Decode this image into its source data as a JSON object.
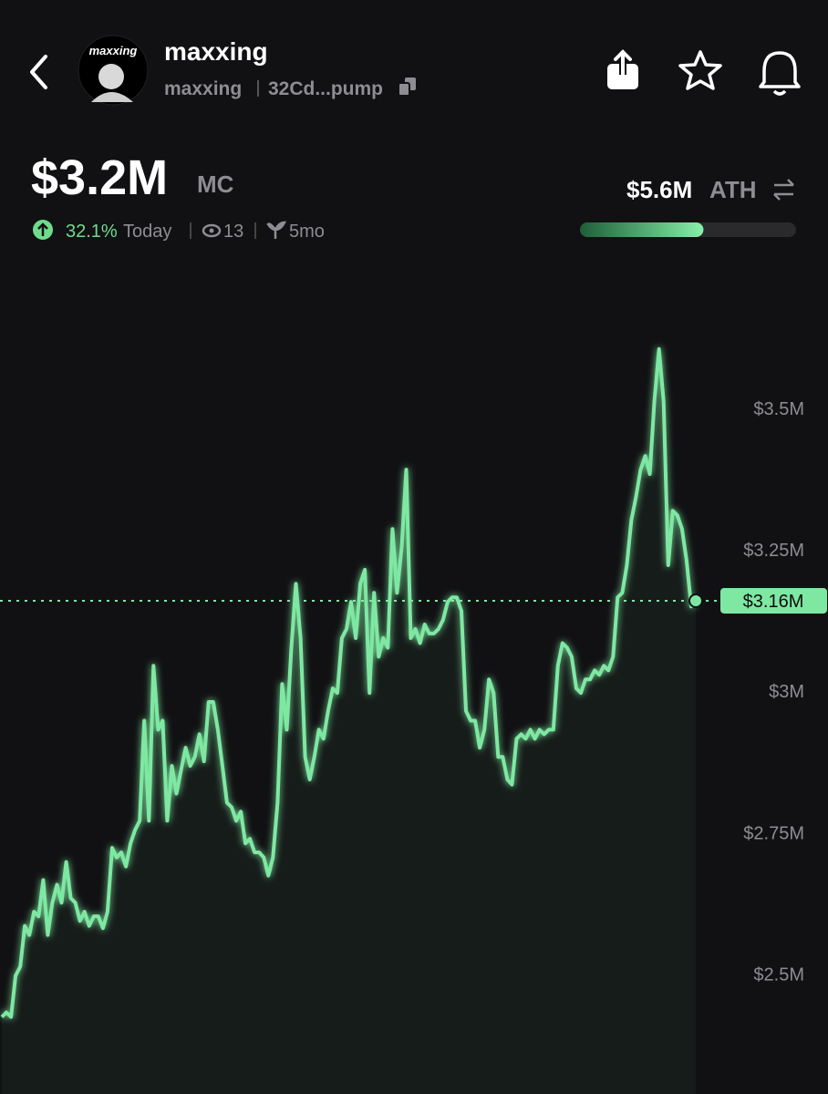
{
  "header": {
    "title": "maxxing",
    "ticker": "maxxing",
    "address": "32Cd...pump",
    "avatar_text": "maxxing"
  },
  "summary": {
    "market_cap": {
      "value": 3200000,
      "label": "$3.2M"
    },
    "market_cap_unit": "MC",
    "change": "32.1%",
    "period": "Today",
    "watchers": "13",
    "age": "5mo",
    "ath": {
      "value": 5600000,
      "label": "$5.6M"
    },
    "ath_unit": "ATH"
  },
  "chart_data": {
    "type": "line",
    "color": "#7ee8a2",
    "values": [
      2424000,
      2432000,
      2424000,
      2497000,
      2513000,
      2585000,
      2569000,
      2610000,
      2602000,
      2666000,
      2569000,
      2626000,
      2658000,
      2626000,
      2698000,
      2634000,
      2626000,
      2594000,
      2610000,
      2585000,
      2602000,
      2602000,
      2581000,
      2610000,
      2723000,
      2706000,
      2715000,
      2690000,
      2731000,
      2755000,
      2771000,
      2948000,
      2771000,
      3045000,
      2932000,
      2948000,
      2771000,
      2868000,
      2819000,
      2860000,
      2900000,
      2868000,
      2884000,
      2924000,
      2876000,
      2981000,
      2981000,
      2932000,
      2868000,
      2803000,
      2795000,
      2771000,
      2787000,
      2731000,
      2739000,
      2715000,
      2715000,
      2706000,
      2674000,
      2706000,
      2803000,
      3013000,
      2932000,
      3077000,
      3190000,
      3094000,
      2884000,
      2844000,
      2884000,
      2932000,
      2916000,
      2965000,
      3005000,
      2997000,
      3094000,
      3110000,
      3158000,
      3094000,
      3190000,
      3215000,
      2997000,
      3174000,
      3061000,
      3094000,
      3077000,
      3287000,
      3174000,
      3255000,
      3392000,
      3094000,
      3110000,
      3085000,
      3118000,
      3102000,
      3102000,
      3110000,
      3126000,
      3158000,
      3166000,
      3166000,
      3142000,
      2965000,
      2948000,
      2948000,
      2900000,
      2932000,
      3021000,
      2997000,
      2884000,
      2884000,
      2844000,
      2835000,
      2916000,
      2924000,
      2916000,
      2932000,
      2916000,
      2932000,
      2924000,
      2932000,
      2932000,
      3045000,
      3085000,
      3077000,
      3061000,
      3005000,
      2997000,
      3021000,
      3021000,
      3037000,
      3029000,
      3045000,
      3037000,
      3061000,
      3166000,
      3174000,
      3223000,
      3303000,
      3344000,
      3392000,
      3416000,
      3384000,
      3513000,
      3605000,
      3513000,
      3223000,
      3319000,
      3311000,
      3287000,
      3231000,
      3150000,
      3160000
    ],
    "ylim": [
      2370000,
      3750000
    ],
    "yticks": [
      {
        "value": 2500000,
        "label": "$2.5M"
      },
      {
        "value": 2750000,
        "label": "$2.75M"
      },
      {
        "value": 3000000,
        "label": "$3M"
      },
      {
        "value": 3250000,
        "label": "$3.25M"
      },
      {
        "value": 3500000,
        "label": "$3.5M"
      }
    ],
    "current": {
      "value": 3160000,
      "label": "$3.16M"
    }
  }
}
